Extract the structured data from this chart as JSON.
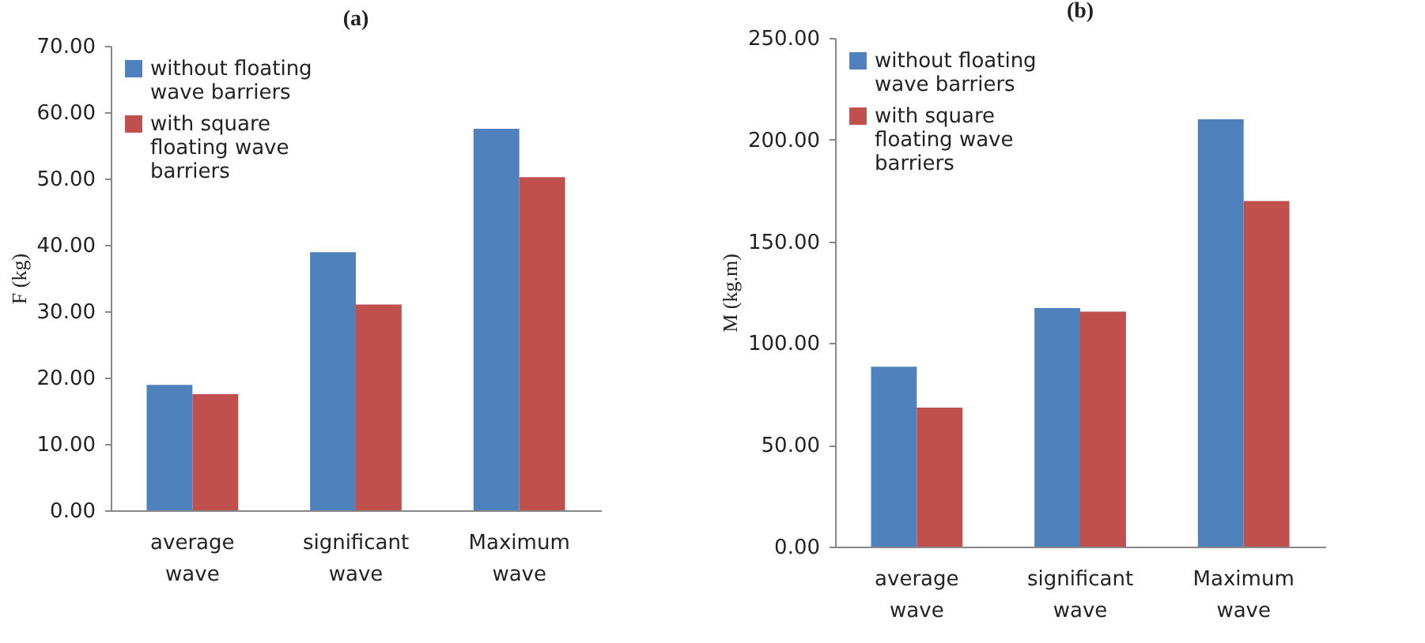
{
  "chart_data": [
    {
      "type": "bar",
      "title": "(a)",
      "ylabel": "F (kg)",
      "categories": [
        "average wave",
        "significant wave",
        "Maximum wave"
      ],
      "series": [
        {
          "name": "without floating wave barriers",
          "color": "#4f81bd",
          "values": [
            18.9,
            38.9,
            57.5
          ]
        },
        {
          "name": "with square floating wave barriers",
          "color": "#c0504d",
          "values": [
            17.5,
            31.0,
            50.2
          ]
        }
      ],
      "ylim": [
        0,
        70
      ],
      "yticks": [
        {
          "value": 0,
          "label": "0.00"
        },
        {
          "value": 10,
          "label": "10.00"
        },
        {
          "value": 20,
          "label": "20.00"
        },
        {
          "value": 30,
          "label": "30.00"
        },
        {
          "value": 40,
          "label": "40.00"
        },
        {
          "value": 50,
          "label": "50.00"
        },
        {
          "value": 60,
          "label": "60.00"
        },
        {
          "value": 70,
          "label": "70.00"
        }
      ],
      "grid": false,
      "legend": "top left"
    },
    {
      "type": "bar",
      "title": "(b)",
      "ylabel": "M (kg.m)",
      "categories": [
        "average wave",
        "significant wave",
        "Maximum wave"
      ],
      "series": [
        {
          "name": "without floating wave barriers",
          "color": "#4f81bd",
          "values": [
            88.4,
            117.2,
            210
          ]
        },
        {
          "name": "with square floating wave barriers",
          "color": "#c0504d",
          "values": [
            68.3,
            115.5,
            169.8
          ]
        }
      ],
      "ylim": [
        0,
        250
      ],
      "yticks": [
        {
          "value": 0,
          "label": "0.00"
        },
        {
          "value": 50,
          "label": "50.00"
        },
        {
          "value": 100,
          "label": "100.00"
        },
        {
          "value": 150,
          "label": "150.00"
        },
        {
          "value": 200,
          "label": "200.00"
        },
        {
          "value": 250,
          "label": "250.00"
        }
      ],
      "grid": false,
      "legend": "top left"
    }
  ]
}
